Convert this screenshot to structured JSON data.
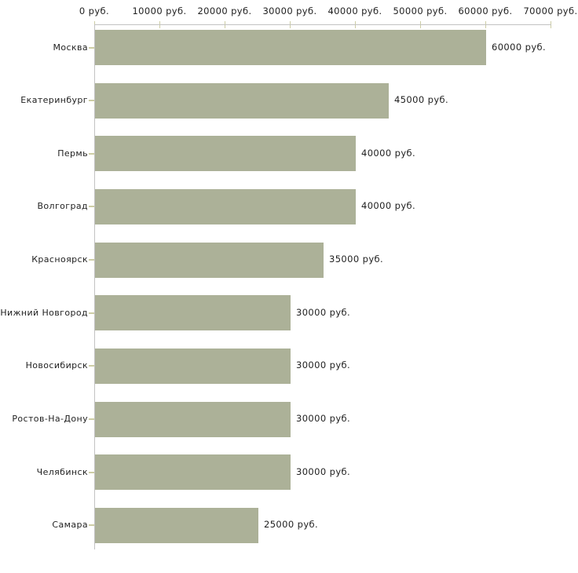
{
  "chart_data": {
    "type": "bar",
    "orientation": "horizontal",
    "title": "",
    "xlabel": "",
    "ylabel": "",
    "unit_suffix": " руб.",
    "categories": [
      "Москва",
      "Екатеринбург",
      "Пермь",
      "Волгоград",
      "Красноярск",
      "Нижний Новгород",
      "Новосибирск",
      "Ростов-На-Дону",
      "Челябинск",
      "Самара"
    ],
    "values": [
      60000,
      45000,
      40000,
      40000,
      35000,
      30000,
      30000,
      30000,
      30000,
      25000
    ],
    "value_labels": [
      "60000 руб.",
      "45000 руб.",
      "40000 руб.",
      "40000 руб.",
      "35000 руб.",
      "30000 руб.",
      "30000 руб.",
      "30000 руб.",
      "30000 руб.",
      "25000 руб."
    ],
    "x_axis": {
      "min": 0,
      "max": 70000,
      "tick_values": [
        0,
        10000,
        20000,
        30000,
        40000,
        50000,
        60000,
        70000
      ],
      "tick_labels": [
        "0 руб.",
        "10000 руб.",
        "20000 руб.",
        "30000 руб.",
        "40000 руб.",
        "50000 руб.",
        "60000 руб.",
        "70000 руб."
      ],
      "position": "top"
    },
    "grid": false,
    "legend": false,
    "colors": {
      "bar": "#acb198",
      "axis_line": "#c2c2c2",
      "tick_mark": "#cdcda5",
      "text": "#1f1f1f",
      "background": "#ffffff"
    }
  }
}
